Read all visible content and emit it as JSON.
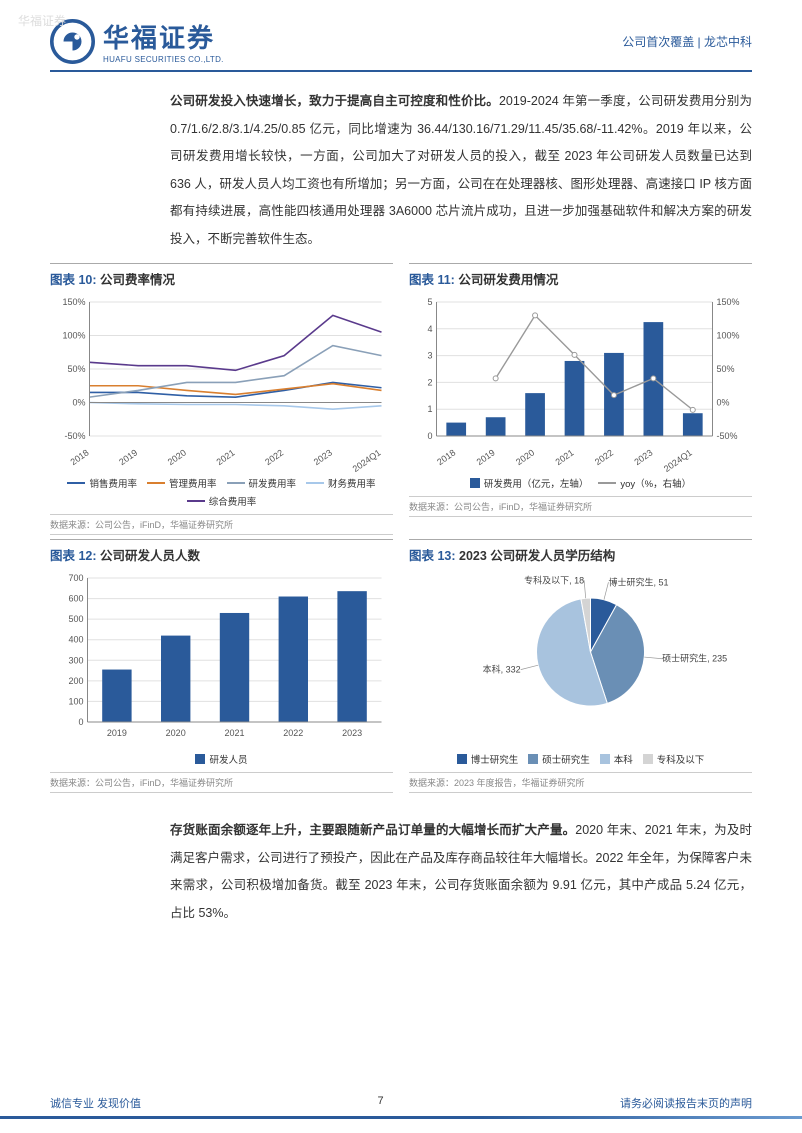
{
  "watermark": "华福证券",
  "header": {
    "brand_cn": "华福证券",
    "brand_en": "HUAFU SECURITIES CO.,LTD.",
    "right": "公司首次覆盖 | 龙芯中科"
  },
  "paragraph1_bold": "公司研发投入快速增长，致力于提高自主可控度和性价比。",
  "paragraph1": "2019-2024 年第一季度，公司研发费用分别为 0.7/1.6/2.8/3.1/4.25/0.85 亿元，同比增速为 36.44/130.16/71.29/11.45/35.68/-11.42%。2019 年以来，公司研发费用增长较快，一方面，公司加大了对研发人员的投入，截至 2023 年公司研发人员数量已达到 636 人，研发人员人均工资也有所增加；另一方面，公司在在处理器核、图形处理器、高速接口 IP 核方面都有持续进展，高性能四核通用处理器 3A6000 芯片流片成功，且进一步加强基础软件和解决方案的研发投入，不断完善软件生态。",
  "chart10": {
    "title_prefix": "图表 10:",
    "title": "公司费率情况",
    "type": "line",
    "categories": [
      "2018",
      "2019",
      "2020",
      "2021",
      "2022",
      "2023",
      "2024Q1"
    ],
    "series": [
      {
        "name": "销售费用率",
        "color": "#2f5fa5",
        "values": [
          15,
          15,
          10,
          8,
          18,
          30,
          22
        ]
      },
      {
        "name": "管理费用率",
        "color": "#d97f2f",
        "values": [
          25,
          25,
          18,
          12,
          20,
          28,
          18
        ]
      },
      {
        "name": "研发费用率",
        "color": "#8aa0b8",
        "values": [
          8,
          18,
          30,
          30,
          40,
          85,
          70
        ]
      },
      {
        "name": "财务费用率",
        "color": "#a7c8ea",
        "values": [
          0,
          -2,
          -3,
          -3,
          -5,
          -10,
          -5
        ]
      },
      {
        "name": "综合费用率",
        "color": "#5a3a8c",
        "values": [
          60,
          55,
          55,
          48,
          70,
          130,
          105
        ]
      }
    ],
    "ylim": [
      -50,
      150
    ],
    "ytick_step": 50,
    "ysuffix": "%",
    "grid_color": "#e0e0e0",
    "bg": "#ffffff",
    "source": "数据来源：公司公告，iFinD，华福证券研究所"
  },
  "chart11": {
    "title_prefix": "图表 11:",
    "title": "公司研发费用情况",
    "type": "bar+line",
    "categories": [
      "2018",
      "2019",
      "2020",
      "2021",
      "2022",
      "2023",
      "2024Q1"
    ],
    "bars": {
      "name": "研发费用（亿元，左轴）",
      "color": "#2a5a9a",
      "values": [
        0.5,
        0.7,
        1.6,
        2.8,
        3.1,
        4.25,
        0.85
      ],
      "ylim": [
        0,
        5
      ],
      "ytick_step": 1
    },
    "line": {
      "name": "yoy（%，右轴）",
      "color": "#999999",
      "values": [
        null,
        36,
        130,
        71,
        11,
        36,
        -11
      ],
      "ylim": [
        -50,
        150
      ],
      "ytick_step": 50,
      "ysuffix": "%"
    },
    "grid_color": "#e0e0e0",
    "source": "数据来源：公司公告，iFinD，华福证券研究所"
  },
  "chart12": {
    "title_prefix": "图表 12:",
    "title": "公司研发人员人数",
    "type": "bar",
    "categories": [
      "2019",
      "2020",
      "2021",
      "2022",
      "2023"
    ],
    "bars": {
      "name": "研发人员",
      "color": "#2a5a9a",
      "values": [
        255,
        420,
        530,
        610,
        636
      ]
    },
    "ylim": [
      0,
      700
    ],
    "ytick_step": 100,
    "grid_color": "#e0e0e0",
    "source": "数据来源：公司公告，iFinD，华福证券研究所"
  },
  "chart13": {
    "title_prefix": "图表 13:",
    "title": "2023 公司研发人员学历结构",
    "type": "pie",
    "slices": [
      {
        "name": "博士研究生",
        "label": "博士研究生, 51",
        "value": 51,
        "color": "#2a5a9a"
      },
      {
        "name": "硕士研究生",
        "label": "硕士研究生, 235",
        "value": 235,
        "color": "#6a8fb5"
      },
      {
        "name": "本科",
        "label": "本科, 332",
        "value": 332,
        "color": "#a8c3de"
      },
      {
        "name": "专科及以下",
        "label": "专科及以下, 18",
        "value": 18,
        "color": "#d4d4d4"
      }
    ],
    "legend": [
      "博士研究生",
      "硕士研究生",
      "本科",
      "专科及以下"
    ],
    "source": "数据来源：2023 年度报告，华福证券研究所"
  },
  "paragraph2_bold": "存货账面余额逐年上升，主要跟随新产品订单量的大幅增长而扩大产量。",
  "paragraph2": "2020 年末、2021 年末，为及时满足客户需求，公司进行了预投产，因此在产品及库存商品较往年大幅增长。2022 年全年，为保障客户未来需求，公司积极增加备货。截至 2023 年末，公司存货账面余额为 9.91 亿元，其中产成品 5.24 亿元，占比 53%。",
  "footer": {
    "left": "诚信专业   发现价值",
    "page": "7",
    "right": "请务必阅读报告末页的声明"
  },
  "colors": {
    "brand": "#2a5a9a"
  }
}
